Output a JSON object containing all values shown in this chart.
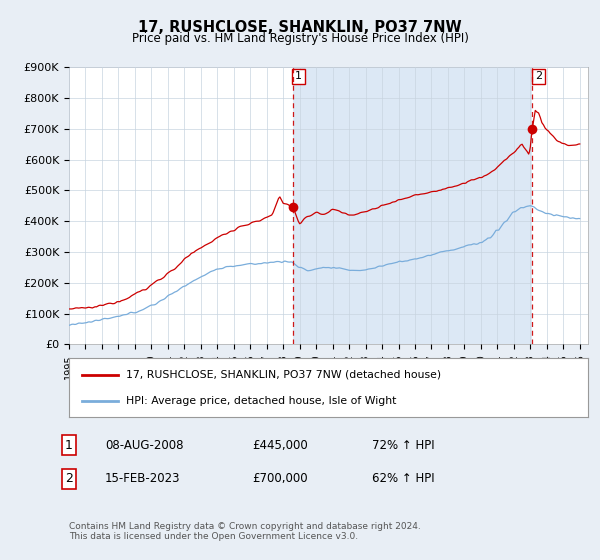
{
  "title": "17, RUSHCLOSE, SHANKLIN, PO37 7NW",
  "subtitle": "Price paid vs. HM Land Registry's House Price Index (HPI)",
  "ylabel_ticks": [
    "£0",
    "£100K",
    "£200K",
    "£300K",
    "£400K",
    "£500K",
    "£600K",
    "£700K",
    "£800K",
    "£900K"
  ],
  "ylim": [
    0,
    900000
  ],
  "xlim_start": 1995.0,
  "xlim_end": 2026.5,
  "xticks": [
    1995,
    1996,
    1997,
    1998,
    1999,
    2000,
    2001,
    2002,
    2003,
    2004,
    2005,
    2006,
    2007,
    2008,
    2009,
    2010,
    2011,
    2012,
    2013,
    2014,
    2015,
    2016,
    2017,
    2018,
    2019,
    2020,
    2021,
    2022,
    2023,
    2024,
    2025,
    2026
  ],
  "red_line_color": "#cc0000",
  "blue_line_color": "#7aaddb",
  "shade_color": "#dce8f5",
  "vline_color": "#cc0000",
  "marker1_x": 2008.58,
  "marker1_y": 445000,
  "marker2_x": 2023.12,
  "marker2_y": 700000,
  "legend_label1": "17, RUSHCLOSE, SHANKLIN, PO37 7NW (detached house)",
  "legend_label2": "HPI: Average price, detached house, Isle of Wight",
  "annotation1_date": "08-AUG-2008",
  "annotation1_price": "£445,000",
  "annotation1_hpi": "72% ↑ HPI",
  "annotation2_date": "15-FEB-2023",
  "annotation2_price": "£700,000",
  "annotation2_hpi": "62% ↑ HPI",
  "footnote": "Contains HM Land Registry data © Crown copyright and database right 2024.\nThis data is licensed under the Open Government Licence v3.0.",
  "background_color": "#e8eef5",
  "plot_bg_color": "#ffffff"
}
